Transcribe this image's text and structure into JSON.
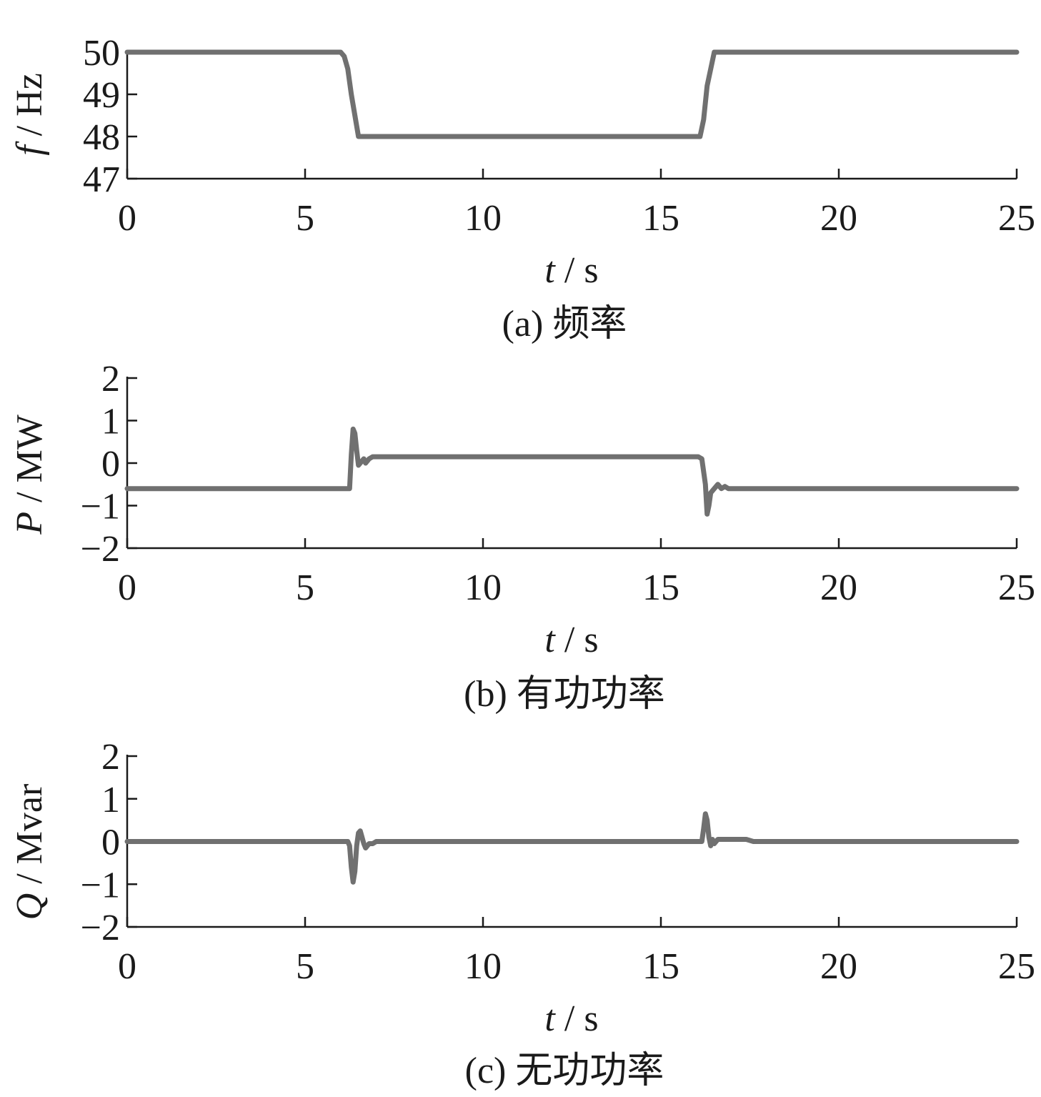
{
  "chart_data": [
    {
      "type": "line",
      "caption": "(a)  频率",
      "xlabel": {
        "var": "t",
        "sep": " / ",
        "unit": "s"
      },
      "ylabel": {
        "var": "f",
        "sep": " / ",
        "unit": "Hz"
      },
      "xlim": [
        0,
        25
      ],
      "ylim": [
        47,
        50
      ],
      "xticks": [
        "0",
        "5",
        "10",
        "15",
        "20",
        "25"
      ],
      "yticks": [
        "47",
        "48",
        "49",
        "50"
      ],
      "grid": false,
      "series": [
        {
          "x": [
            0,
            6.0,
            6.1,
            6.2,
            6.3,
            6.5,
            16.0,
            16.1,
            16.2,
            16.3,
            16.5,
            25
          ],
          "y": [
            50,
            50,
            49.9,
            49.6,
            49.0,
            48.0,
            48.0,
            48.0,
            48.4,
            49.2,
            50,
            50
          ]
        }
      ]
    },
    {
      "type": "line",
      "caption": "(b)  有功功率",
      "xlabel": {
        "var": "t",
        "sep": " / ",
        "unit": "s"
      },
      "ylabel": {
        "var": "P",
        "sep": " / ",
        "unit": "MW"
      },
      "xlim": [
        0,
        25
      ],
      "ylim": [
        -2,
        2
      ],
      "xticks": [
        "0",
        "5",
        "10",
        "15",
        "20",
        "25"
      ],
      "yticks": [
        "−2",
        "−1",
        "0",
        "1",
        "2"
      ],
      "grid": false,
      "series": [
        {
          "x": [
            0,
            6.25,
            6.3,
            6.35,
            6.4,
            6.45,
            6.5,
            6.55,
            6.6,
            6.65,
            6.7,
            6.8,
            6.9,
            7.0,
            16.05,
            16.15,
            16.25,
            16.3,
            16.35,
            16.4,
            16.5,
            16.6,
            16.7,
            16.8,
            16.9,
            17.0,
            25
          ],
          "y": [
            -0.6,
            -0.6,
            0.2,
            0.8,
            0.7,
            0.3,
            -0.05,
            0.0,
            0.05,
            0.1,
            0.0,
            0.1,
            0.15,
            0.15,
            0.15,
            0.1,
            -0.5,
            -1.2,
            -1.0,
            -0.7,
            -0.6,
            -0.5,
            -0.6,
            -0.55,
            -0.6,
            -0.6,
            -0.6
          ]
        }
      ]
    },
    {
      "type": "line",
      "caption": "(c)  无功功率",
      "xlabel": {
        "var": "t",
        "sep": " / ",
        "unit": "s"
      },
      "ylabel": {
        "var": "Q",
        "sep": " / ",
        "unit": "Mvar"
      },
      "xlim": [
        0,
        25
      ],
      "ylim": [
        -2,
        2
      ],
      "xticks": [
        "0",
        "5",
        "10",
        "15",
        "20",
        "25"
      ],
      "yticks": [
        "−2",
        "−1",
        "0",
        "1",
        "2"
      ],
      "grid": false,
      "series": [
        {
          "x": [
            0,
            6.2,
            6.25,
            6.3,
            6.35,
            6.4,
            6.45,
            6.5,
            6.55,
            6.6,
            6.65,
            6.7,
            6.8,
            6.9,
            7.0,
            7.5,
            16.15,
            16.2,
            16.25,
            16.3,
            16.35,
            16.4,
            16.45,
            16.5,
            16.6,
            16.8,
            17.0,
            17.4,
            17.6,
            25
          ],
          "y": [
            0.0,
            0.0,
            -0.1,
            -0.6,
            -0.95,
            -0.7,
            -0.1,
            0.2,
            0.25,
            0.1,
            -0.05,
            -0.15,
            -0.05,
            -0.05,
            0.0,
            0.0,
            0.0,
            0.3,
            0.65,
            0.5,
            0.1,
            -0.1,
            0.05,
            -0.05,
            0.05,
            0.05,
            0.05,
            0.05,
            0.0,
            0.0
          ]
        }
      ]
    }
  ]
}
